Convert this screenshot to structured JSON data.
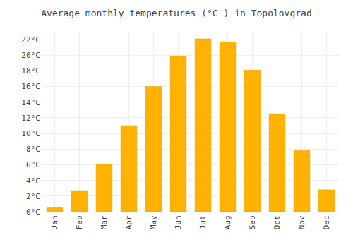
{
  "chart_data": {
    "type": "bar",
    "title": "Average monthly temperatures (°C ) in Topolovgrad",
    "categories": [
      "Jan",
      "Feb",
      "Mar",
      "Apr",
      "May",
      "Jun",
      "Jul",
      "Aug",
      "Sep",
      "Oct",
      "Nov",
      "Dec"
    ],
    "values": [
      0.5,
      2.7,
      6.1,
      11.0,
      16.0,
      19.9,
      22.1,
      21.7,
      18.1,
      12.5,
      7.8,
      2.8
    ],
    "color": "#FFB300",
    "ylim": [
      0,
      23
    ],
    "yticks": [
      {
        "value": 0,
        "label": "0°C"
      },
      {
        "value": 2,
        "label": "2°C"
      },
      {
        "value": 4,
        "label": "4°C"
      },
      {
        "value": 6,
        "label": "6°C"
      },
      {
        "value": 8,
        "label": "8°C"
      },
      {
        "value": 10,
        "label": "10°C"
      },
      {
        "value": 12,
        "label": "12°C"
      },
      {
        "value": 14,
        "label": "14°C"
      },
      {
        "value": 16,
        "label": "16°C"
      },
      {
        "value": 18,
        "label": "18°C"
      },
      {
        "value": 20,
        "label": "20°C"
      },
      {
        "value": 22,
        "label": "22°C"
      }
    ],
    "grid": true
  }
}
